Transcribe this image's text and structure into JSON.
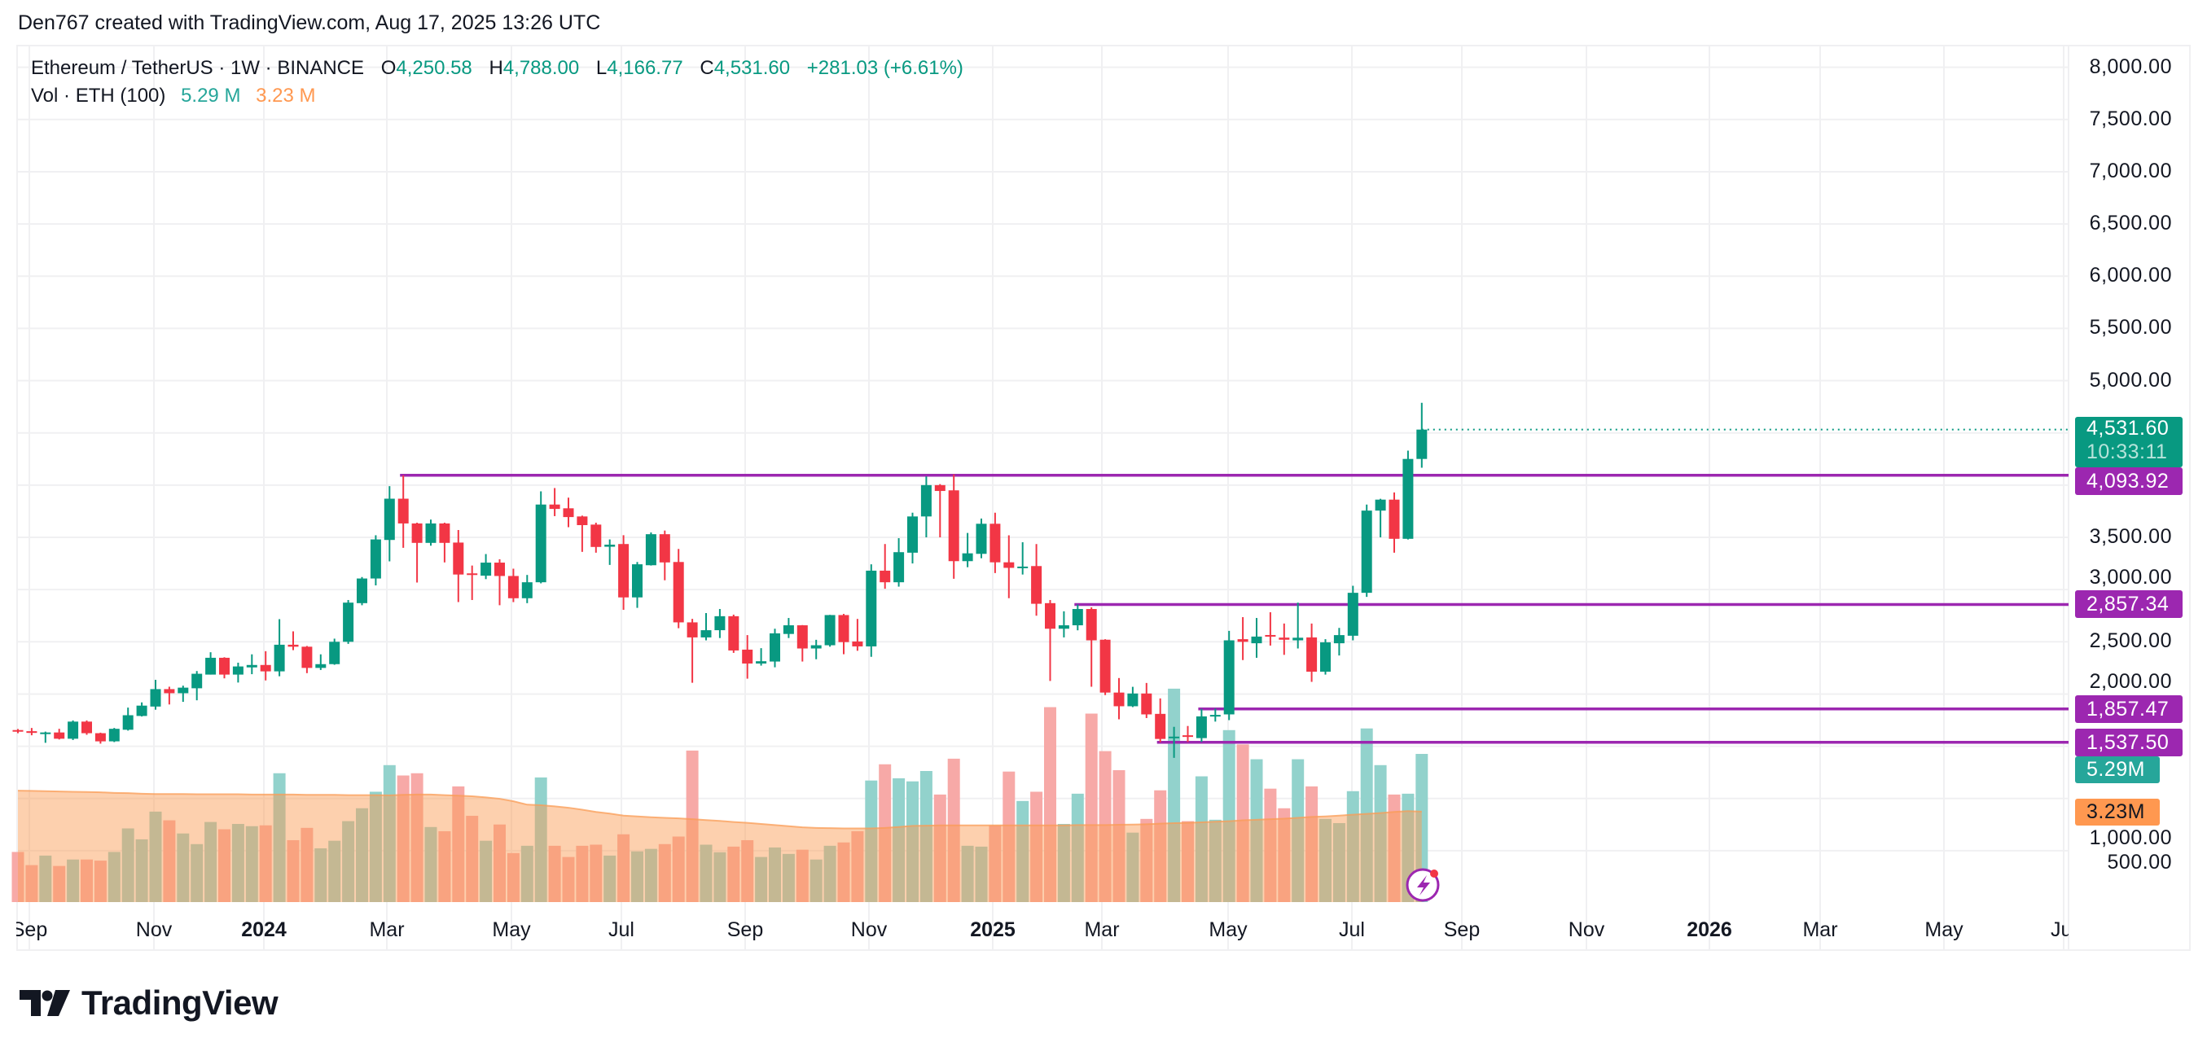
{
  "credit": "Den767 created with TradingView.com, Aug 17, 2025 13:26 UTC",
  "legend": {
    "symbol": "Ethereum / TetherUS · 1W · BINANCE",
    "o_label": "O",
    "o": "4,250.58",
    "h_label": "H",
    "h": "4,788.00",
    "l_label": "L",
    "l": "4,166.77",
    "c_label": "C",
    "c": "4,531.60",
    "change": "+281.03 (+6.61%)",
    "vol_label": "Vol · ETH (100)",
    "vol": "5.29 M",
    "vol_ma": "3.23 M"
  },
  "price_axis": {
    "ticks": [
      "8,000.00",
      "7,500.00",
      "7,000.00",
      "6,500.00",
      "6,000.00",
      "5,500.00",
      "5,000.00",
      "3,500.00",
      "3,000.00",
      "2,500.00",
      "2,000.00",
      "1,000.00",
      "500.00"
    ]
  },
  "time_axis": {
    "labels": [
      {
        "text": "Sep",
        "year": false
      },
      {
        "text": "Nov",
        "year": false
      },
      {
        "text": "2024",
        "year": true
      },
      {
        "text": "Mar",
        "year": false
      },
      {
        "text": "May",
        "year": false
      },
      {
        "text": "Jul",
        "year": false
      },
      {
        "text": "Sep",
        "year": false
      },
      {
        "text": "Nov",
        "year": false
      },
      {
        "text": "2025",
        "year": true
      },
      {
        "text": "Mar",
        "year": false
      },
      {
        "text": "May",
        "year": false
      },
      {
        "text": "Jul",
        "year": false
      },
      {
        "text": "Sep",
        "year": false
      },
      {
        "text": "Nov",
        "year": false
      },
      {
        "text": "2026",
        "year": true
      },
      {
        "text": "Mar",
        "year": false
      },
      {
        "text": "May",
        "year": false
      },
      {
        "text": "Jul",
        "year": false
      }
    ]
  },
  "badges": {
    "current_price": "4,531.60",
    "countdown": "10:33:11",
    "levels": [
      "4,093.92",
      "2,857.34",
      "1,857.47",
      "1,537.50"
    ],
    "volume": "5.29M",
    "volume_ma": "3.23M"
  },
  "brand": {
    "name": "TradingView"
  },
  "colors": {
    "up": "#089981",
    "down": "#f23645",
    "level": "#9c27b0",
    "vol_up": "#92d2cc",
    "vol_down": "#f7a9a7",
    "vol_ma": "#fa9c55"
  },
  "chart_data": {
    "type": "candlestick",
    "title": "Ethereum / TetherUS · 1W · BINANCE",
    "interval": "1W",
    "y_scale": "linear",
    "ylim": [
      0,
      8000
    ],
    "grid": true,
    "columns": [
      "open",
      "high",
      "low",
      "close"
    ],
    "candles": [
      [
        1655,
        1665,
        1625,
        1644
      ],
      [
        1644,
        1675,
        1605,
        1628
      ],
      [
        1628,
        1640,
        1533,
        1632
      ],
      [
        1632,
        1667,
        1565,
        1572
      ],
      [
        1572,
        1747,
        1560,
        1736
      ],
      [
        1736,
        1747,
        1610,
        1625
      ],
      [
        1625,
        1630,
        1525,
        1547
      ],
      [
        1547,
        1675,
        1540,
        1667
      ],
      [
        1658,
        1870,
        1650,
        1797
      ],
      [
        1790,
        1920,
        1785,
        1889
      ],
      [
        1880,
        2136,
        1850,
        2047
      ],
      [
        2047,
        2070,
        1900,
        2008
      ],
      [
        2008,
        2080,
        1925,
        2061
      ],
      [
        2055,
        2220,
        1940,
        2194
      ],
      [
        2186,
        2400,
        2186,
        2347
      ],
      [
        2347,
        2352,
        2150,
        2186
      ],
      [
        2186,
        2300,
        2110,
        2264
      ],
      [
        2255,
        2380,
        2190,
        2278
      ],
      [
        2278,
        2410,
        2130,
        2217
      ],
      [
        2217,
        2717,
        2170,
        2472
      ],
      [
        2472,
        2600,
        2420,
        2453
      ],
      [
        2453,
        2460,
        2200,
        2250
      ],
      [
        2250,
        2380,
        2230,
        2286
      ],
      [
        2286,
        2530,
        2280,
        2500
      ],
      [
        2500,
        2900,
        2480,
        2875
      ],
      [
        2870,
        3120,
        2850,
        3106
      ],
      [
        3106,
        3520,
        3040,
        3480
      ],
      [
        3475,
        3990,
        3270,
        3870
      ],
      [
        3870,
        4093.92,
        3400,
        3633
      ],
      [
        3633,
        3640,
        3067,
        3447
      ],
      [
        3447,
        3670,
        3420,
        3633
      ],
      [
        3633,
        3640,
        3260,
        3447
      ],
      [
        3450,
        3570,
        2880,
        3144
      ],
      [
        3155,
        3230,
        2900,
        3150
      ],
      [
        3133,
        3340,
        3100,
        3258
      ],
      [
        3258,
        3290,
        2850,
        3130
      ],
      [
        3130,
        3200,
        2880,
        2917
      ],
      [
        2917,
        3140,
        2870,
        3070
      ],
      [
        3070,
        3940,
        3060,
        3814
      ],
      [
        3814,
        3972,
        3703,
        3772
      ],
      [
        3778,
        3880,
        3597,
        3694
      ],
      [
        3700,
        3708,
        3361,
        3617
      ],
      [
        3622,
        3640,
        3353,
        3408
      ],
      [
        3410,
        3480,
        3236,
        3430
      ],
      [
        3436,
        3520,
        2806,
        2925
      ],
      [
        2925,
        3264,
        2825,
        3242
      ],
      [
        3233,
        3547,
        3230,
        3530
      ],
      [
        3530,
        3565,
        3089,
        3260
      ],
      [
        3264,
        3389,
        2630,
        2686
      ],
      [
        2686,
        2720,
        2108,
        2542
      ],
      [
        2542,
        2775,
        2514,
        2611
      ],
      [
        2611,
        2814,
        2536,
        2745
      ],
      [
        2745,
        2760,
        2394,
        2417
      ],
      [
        2425,
        2564,
        2147,
        2292
      ],
      [
        2292,
        2439,
        2272,
        2314
      ],
      [
        2311,
        2625,
        2256,
        2581
      ],
      [
        2575,
        2728,
        2536,
        2658
      ],
      [
        2658,
        2660,
        2311,
        2436
      ],
      [
        2436,
        2519,
        2333,
        2467
      ],
      [
        2467,
        2758,
        2453,
        2756
      ],
      [
        2756,
        2767,
        2381,
        2497
      ],
      [
        2503,
        2719,
        2414,
        2456
      ],
      [
        2456,
        3242,
        2356,
        3181
      ],
      [
        3181,
        3436,
        3008,
        3070
      ],
      [
        3070,
        3492,
        3028,
        3358
      ],
      [
        3353,
        3736,
        3250,
        3700
      ],
      [
        3700,
        4083,
        3500,
        4000
      ],
      [
        4000,
        4010,
        3500,
        3944
      ],
      [
        3950,
        4103,
        3103,
        3272
      ],
      [
        3272,
        3542,
        3214,
        3347
      ],
      [
        3342,
        3680,
        3300,
        3630
      ],
      [
        3630,
        3736,
        3158,
        3261
      ],
      [
        3261,
        3519,
        2917,
        3208
      ],
      [
        3210,
        3453,
        3144,
        3220
      ],
      [
        3225,
        3436,
        2750,
        2864
      ],
      [
        2870,
        2900,
        2125,
        2625
      ],
      [
        2625,
        2792,
        2542,
        2658
      ],
      [
        2658,
        2857.34,
        2610,
        2814
      ],
      [
        2814,
        2830,
        2070,
        2514
      ],
      [
        2520,
        2525,
        1990,
        2014
      ],
      [
        2014,
        2153,
        1758,
        1883
      ],
      [
        1883,
        2069,
        1875,
        2005
      ],
      [
        2005,
        2106,
        1770,
        1805
      ],
      [
        1810,
        1958,
        1537.5,
        1570
      ],
      [
        1580,
        1686,
        1389,
        1592
      ],
      [
        1605,
        1694,
        1541,
        1597
      ],
      [
        1578,
        1857.47,
        1541,
        1786
      ],
      [
        1792,
        1861,
        1736,
        1800
      ],
      [
        1805,
        2605,
        1750,
        2514
      ],
      [
        2525,
        2736,
        2325,
        2500
      ],
      [
        2486,
        2728,
        2347,
        2550
      ],
      [
        2565,
        2783,
        2464,
        2553
      ],
      [
        2540,
        2675,
        2375,
        2520
      ],
      [
        2514,
        2875,
        2436,
        2539
      ],
      [
        2542,
        2675,
        2117,
        2214
      ],
      [
        2214,
        2525,
        2186,
        2495
      ],
      [
        2486,
        2633,
        2369,
        2564
      ],
      [
        2558,
        3036,
        2514,
        2969
      ],
      [
        2969,
        3814,
        2930,
        3756
      ],
      [
        3756,
        3869,
        3500,
        3861
      ],
      [
        3861,
        3930,
        3353,
        3486
      ],
      [
        3486,
        4330,
        3480,
        4250.58
      ],
      [
        4250.58,
        4788.0,
        4166.77,
        4531.6
      ]
    ],
    "volume_unit": "M",
    "volume": [
      1.79,
      1.32,
      1.66,
      1.29,
      1.52,
      1.52,
      1.48,
      1.79,
      2.63,
      2.24,
      3.23,
      2.92,
      2.45,
      2.07,
      2.86,
      2.6,
      2.79,
      2.71,
      2.74,
      4.6,
      2.21,
      2.65,
      1.92,
      2.19,
      2.89,
      3.35,
      3.94,
      4.89,
      4.52,
      4.6,
      2.68,
      2.53,
      4.13,
      3.08,
      2.19,
      2.77,
      1.75,
      2.01,
      4.45,
      2.01,
      1.61,
      2.01,
      2.05,
      1.66,
      2.42,
      1.81,
      1.9,
      2.07,
      2.34,
      5.41,
      2.05,
      1.78,
      1.98,
      2.21,
      1.61,
      1.95,
      1.72,
      1.87,
      1.52,
      2.01,
      2.13,
      2.53,
      4.34,
      4.92,
      4.42,
      4.31,
      4.68,
      3.84,
      5.12,
      2.01,
      1.98,
      2.74,
      4.66,
      3.61,
      3.94,
      6.96,
      2.79,
      3.87,
      6.73,
      5.39,
      4.71,
      2.48,
      2.97,
      3.99,
      7.62,
      2.89,
      4.49,
      2.94,
      6.14,
      5.63,
      5.1,
      4.05,
      3.35,
      5.1,
      4.13,
      2.97,
      2.82,
      3.96,
      6.2,
      4.89,
      3.84,
      3.87,
      5.29
    ],
    "volume_ma_period": 100,
    "volume_ma": [
      3.98,
      3.97,
      3.96,
      3.95,
      3.94,
      3.93,
      3.92,
      3.9,
      3.89,
      3.87,
      3.86,
      3.86,
      3.86,
      3.85,
      3.85,
      3.85,
      3.85,
      3.84,
      3.84,
      3.84,
      3.84,
      3.83,
      3.83,
      3.83,
      3.82,
      3.82,
      3.82,
      3.81,
      3.83,
      3.84,
      3.84,
      3.82,
      3.8,
      3.78,
      3.74,
      3.69,
      3.6,
      3.48,
      3.46,
      3.42,
      3.37,
      3.3,
      3.22,
      3.16,
      3.09,
      3.06,
      3.03,
      3.01,
      2.99,
      2.96,
      2.93,
      2.9,
      2.86,
      2.83,
      2.79,
      2.75,
      2.71,
      2.67,
      2.65,
      2.64,
      2.63,
      2.63,
      2.63,
      2.65,
      2.68,
      2.72,
      2.73,
      2.74,
      2.74,
      2.74,
      2.74,
      2.74,
      2.74,
      2.74,
      2.74,
      2.74,
      2.74,
      2.75,
      2.75,
      2.75,
      2.76,
      2.77,
      2.78,
      2.8,
      2.82,
      2.83,
      2.85,
      2.87,
      2.89,
      2.92,
      2.94,
      2.96,
      2.98,
      3.01,
      3.04,
      3.06,
      3.09,
      3.12,
      3.15,
      3.18,
      3.22,
      3.25,
      3.23
    ],
    "horizontal_levels": [
      4093.92,
      2857.34,
      1857.47,
      1537.5
    ],
    "last_price": 4531.6
  }
}
